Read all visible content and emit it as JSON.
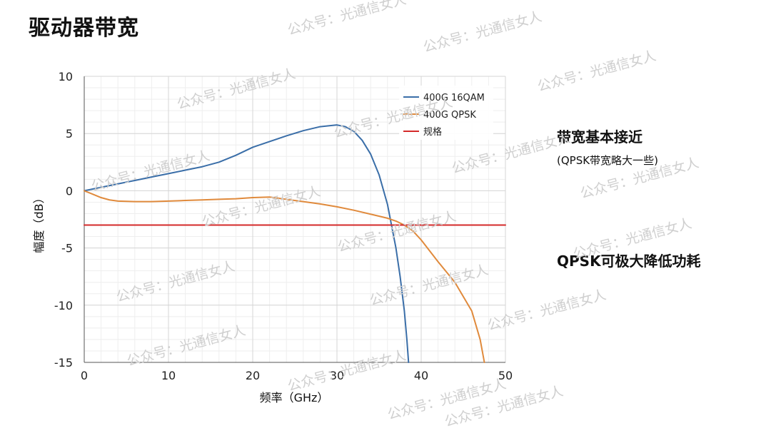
{
  "title": "驱动器带宽",
  "annotations": {
    "heading1": "带宽基本接近",
    "note1": "(QPSK带宽略大一些)",
    "heading2": "QPSK可极大降低功耗"
  },
  "watermark_text": "公众号：光通信女人",
  "chart_data": {
    "type": "line",
    "title": "",
    "xlabel": "频率（GHz）",
    "ylabel": "幅度（dB）",
    "xlim": [
      0,
      50
    ],
    "ylim": [
      -15,
      10
    ],
    "xticks": [
      0,
      10,
      20,
      30,
      40,
      50
    ],
    "yticks": [
      -15,
      -10,
      -5,
      0,
      5,
      10
    ],
    "grid": true,
    "legend_position": "top-right",
    "series": [
      {
        "name": "400G 16QAM",
        "color": "#3a6ea8",
        "x": [
          0,
          2,
          4,
          6,
          8,
          10,
          12,
          14,
          16,
          18,
          20,
          22,
          24,
          26,
          28,
          30,
          31,
          32,
          33,
          34,
          35,
          36,
          37,
          37.5,
          38,
          38.3,
          38.5
        ],
        "y": [
          0,
          0.3,
          0.6,
          0.9,
          1.2,
          1.5,
          1.8,
          2.1,
          2.5,
          3.1,
          3.8,
          4.3,
          4.8,
          5.25,
          5.6,
          5.75,
          5.6,
          5.2,
          4.4,
          3.2,
          1.4,
          -1.2,
          -5.0,
          -7.5,
          -10.5,
          -13.0,
          -15.0
        ]
      },
      {
        "name": "400G QPSK",
        "color": "#e08a3c",
        "x": [
          0,
          1,
          2,
          3,
          4,
          6,
          8,
          10,
          12,
          14,
          16,
          18,
          20,
          22,
          24,
          26,
          28,
          30,
          32,
          34,
          36,
          37,
          38,
          39,
          40,
          42,
          44,
          46,
          47,
          47.5
        ],
        "y": [
          0,
          -0.3,
          -0.6,
          -0.8,
          -0.9,
          -0.95,
          -0.95,
          -0.9,
          -0.85,
          -0.8,
          -0.75,
          -0.7,
          -0.6,
          -0.55,
          -0.75,
          -0.95,
          -1.15,
          -1.4,
          -1.7,
          -2.05,
          -2.4,
          -2.65,
          -3.0,
          -3.5,
          -4.3,
          -6.2,
          -8.0,
          -10.5,
          -13.0,
          -15.0
        ]
      },
      {
        "name": "规格",
        "color": "#d42a2a",
        "x": [
          0,
          50
        ],
        "y": [
          -3,
          -3
        ]
      }
    ]
  }
}
